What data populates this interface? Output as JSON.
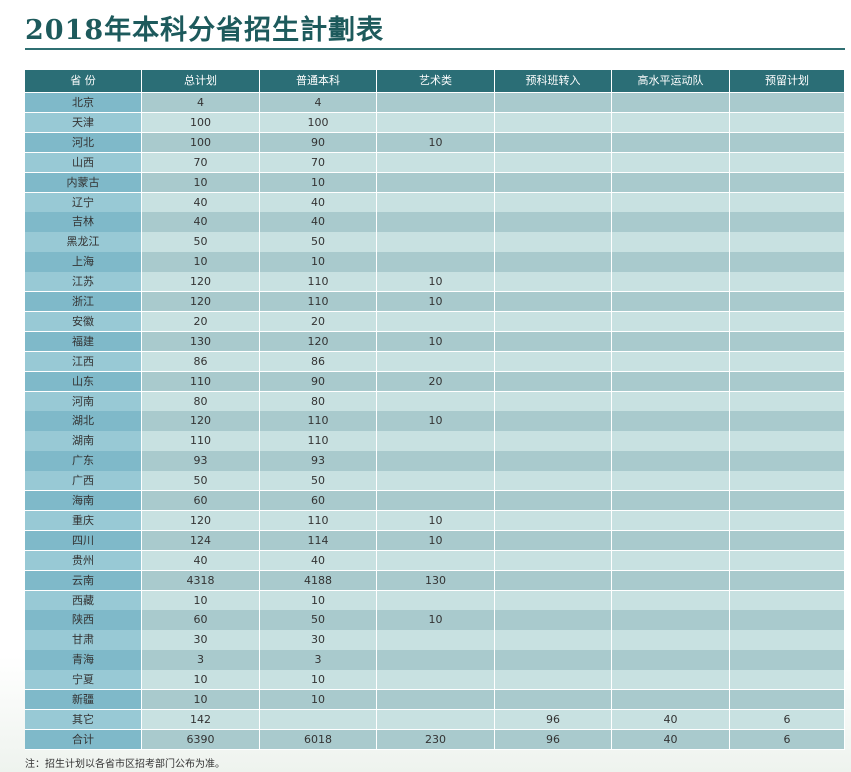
{
  "header": {
    "title": "2018年本科分省招生計劃表"
  },
  "table": {
    "columns": [
      "省 份",
      "总计划",
      "普通本科",
      "艺术类",
      "预科班转入",
      "高水平运动队",
      "预留计划"
    ],
    "rows": [
      [
        "北京",
        4,
        4,
        null,
        null,
        null,
        null
      ],
      [
        "天津",
        100,
        100,
        null,
        null,
        null,
        null
      ],
      [
        "河北",
        100,
        90,
        10,
        null,
        null,
        null
      ],
      [
        "山西",
        70,
        70,
        null,
        null,
        null,
        null
      ],
      [
        "内蒙古",
        10,
        10,
        null,
        null,
        null,
        null
      ],
      [
        "辽宁",
        40,
        40,
        null,
        null,
        null,
        null
      ],
      [
        "吉林",
        40,
        40,
        null,
        null,
        null,
        null
      ],
      [
        "黑龙江",
        50,
        50,
        null,
        null,
        null,
        null
      ],
      [
        "上海",
        10,
        10,
        null,
        null,
        null,
        null
      ],
      [
        "江苏",
        120,
        110,
        10,
        null,
        null,
        null
      ],
      [
        "浙江",
        120,
        110,
        10,
        null,
        null,
        null
      ],
      [
        "安徽",
        20,
        20,
        null,
        null,
        null,
        null
      ],
      [
        "福建",
        130,
        120,
        10,
        null,
        null,
        null
      ],
      [
        "江西",
        86,
        86,
        null,
        null,
        null,
        null
      ],
      [
        "山东",
        110,
        90,
        20,
        null,
        null,
        null
      ],
      [
        "河南",
        80,
        80,
        null,
        null,
        null,
        null
      ],
      [
        "湖北",
        120,
        110,
        10,
        null,
        null,
        null
      ],
      [
        "湖南",
        110,
        110,
        null,
        null,
        null,
        null
      ],
      [
        "广东",
        93,
        93,
        null,
        null,
        null,
        null
      ],
      [
        "广西",
        50,
        50,
        null,
        null,
        null,
        null
      ],
      [
        "海南",
        60,
        60,
        null,
        null,
        null,
        null
      ],
      [
        "重庆",
        120,
        110,
        10,
        null,
        null,
        null
      ],
      [
        "四川",
        124,
        114,
        10,
        null,
        null,
        null
      ],
      [
        "贵州",
        40,
        40,
        null,
        null,
        null,
        null
      ],
      [
        "云南",
        4318,
        4188,
        130,
        null,
        null,
        null
      ],
      [
        "西藏",
        10,
        10,
        null,
        null,
        null,
        null
      ],
      [
        "陕西",
        60,
        50,
        10,
        null,
        null,
        null
      ],
      [
        "甘肃",
        30,
        30,
        null,
        null,
        null,
        null
      ],
      [
        "青海",
        3,
        3,
        null,
        null,
        null,
        null
      ],
      [
        "宁夏",
        10,
        10,
        null,
        null,
        null,
        null
      ],
      [
        "新疆",
        10,
        10,
        null,
        null,
        null,
        null
      ],
      [
        "其它",
        142,
        null,
        null,
        96,
        40,
        6
      ],
      [
        "合计",
        6390,
        6018,
        230,
        96,
        40,
        6
      ]
    ]
  },
  "footer": {
    "note": "注：招生计划以各省市区招考部门公布为准。"
  }
}
